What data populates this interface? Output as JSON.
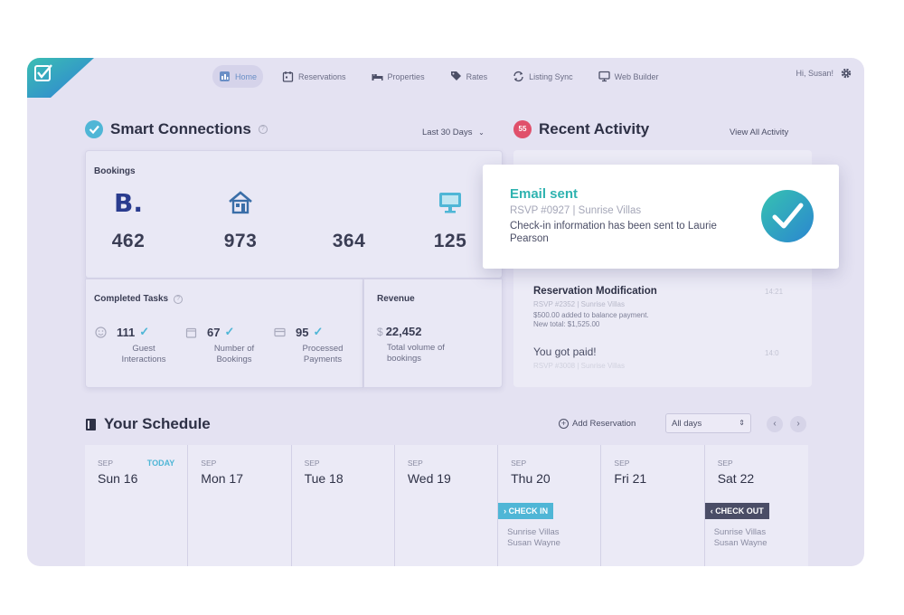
{
  "nav": {
    "items": [
      {
        "label": "Home",
        "icon": "chart-icon"
      },
      {
        "label": "Reservations",
        "icon": "calendar-icon"
      },
      {
        "label": "Properties",
        "icon": "bed-icon"
      },
      {
        "label": "Rates",
        "icon": "tag-icon"
      },
      {
        "label": "Listing Sync",
        "icon": "sync-icon"
      },
      {
        "label": "Web Builder",
        "icon": "monitor-icon"
      }
    ],
    "greeting": "Hi, Susan!"
  },
  "smart": {
    "title": "Smart Connections",
    "range": "Last 30 Days",
    "bookings_label": "Bookings",
    "bookings": [
      {
        "icon": "booking-b-icon",
        "glyph": "B.",
        "value": "462"
      },
      {
        "icon": "house-icon",
        "value": "973"
      },
      {
        "icon": "blank-icon",
        "value": "364"
      },
      {
        "icon": "monitor-icon",
        "value": "125"
      }
    ],
    "tasks_label": "Completed Tasks",
    "tasks": [
      {
        "icon": "smile-icon",
        "value": "111",
        "line1": "Guest",
        "line2": "Interactions"
      },
      {
        "icon": "calendar-icon",
        "value": "67",
        "line1": "Number of",
        "line2": "Bookings"
      },
      {
        "icon": "card-icon",
        "value": "95",
        "line1": "Processed",
        "line2": "Payments"
      }
    ],
    "revenue_label": "Revenue",
    "revenue_currency": "$",
    "revenue_value": "22,452",
    "revenue_line1": "Total volume of",
    "revenue_line2": "bookings"
  },
  "activity": {
    "badge": "55",
    "title": "Recent Activity",
    "view_all": "View All Activity",
    "toast": {
      "title": "Email sent",
      "sub": "RSVP #0927  |  Sunrise Villas",
      "body": "Check-in information has been sent to Laurie Pearson"
    },
    "entries": [
      {
        "title": "Reservation Modification",
        "time": "14:21",
        "sub": "RSVP #2352  |  Sunrise Villas",
        "line1": "$500.00 added to balance payment.",
        "line2": "New total: $1,525.00"
      },
      {
        "title": "You got paid!",
        "time": "14:0",
        "sub": "RSVP #3008  |  Sunrise Villas"
      }
    ]
  },
  "schedule": {
    "title": "Your Schedule",
    "add": "Add Reservation",
    "filter": "All days",
    "days": [
      {
        "month": "SEP",
        "name": "Sun 16",
        "today": "TODAY"
      },
      {
        "month": "SEP",
        "name": "Mon 17"
      },
      {
        "month": "SEP",
        "name": "Tue 18"
      },
      {
        "month": "SEP",
        "name": "Wed 19"
      },
      {
        "month": "SEP",
        "name": "Thu 20",
        "event": {
          "label": "CHECK IN",
          "type": "in",
          "place": "Sunrise Villas",
          "guest": "Susan Wayne"
        }
      },
      {
        "month": "SEP",
        "name": "Fri 21"
      },
      {
        "month": "SEP",
        "name": "Sat 22",
        "event": {
          "label": "CHECK OUT",
          "type": "out",
          "place": "Sunrise Villas",
          "guest": "Susan Wayne"
        }
      }
    ]
  }
}
